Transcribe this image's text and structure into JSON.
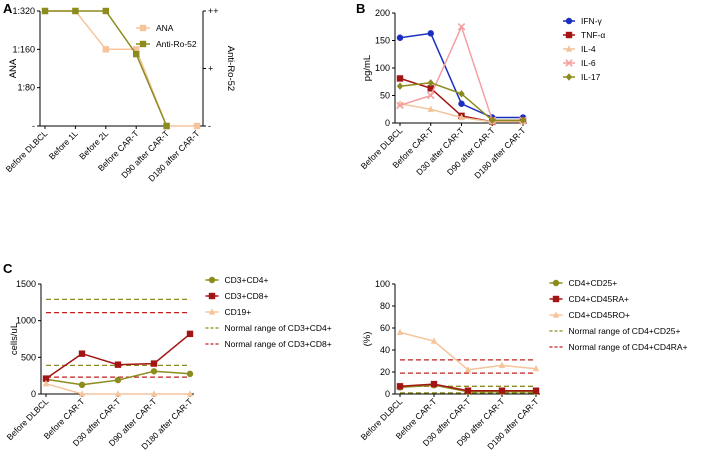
{
  "chart_data": [
    {
      "id": "A",
      "panel_label": "A",
      "type": "line",
      "categories": [
        "Before DLBCL",
        "Before 1L",
        "Before 2L",
        "Before CAR-T",
        "D90 after CAR-T",
        "D180 after CAR-T"
      ],
      "ylabel": "ANA",
      "y2label": "Anti-Ro-52",
      "yticks": [
        "-",
        "1:80",
        "1:160",
        "1:320"
      ],
      "y2ticks": [
        "-",
        "+",
        "++"
      ],
      "ylim": [
        0,
        3
      ],
      "y2lim": [
        0,
        2
      ],
      "legend_position": "top-right",
      "series": [
        {
          "name": "ANA",
          "axis": "left",
          "color": "#f5c49b",
          "marker": "square",
          "values": [
            3,
            3,
            2,
            2,
            0,
            0
          ]
        },
        {
          "name": "Anti-Ro-52",
          "axis": "right",
          "color": "#8c8c1e",
          "marker": "square",
          "values": [
            2,
            2,
            2,
            1.25,
            0,
            null
          ]
        }
      ]
    },
    {
      "id": "B",
      "panel_label": "B",
      "type": "line",
      "categories": [
        "Before DLBCL",
        "Before CAR-T",
        "D30 after CAR-T",
        "D90 after CAR-T",
        "D180 after CAR-T"
      ],
      "ylabel": "pg/mL",
      "ylim": [
        0,
        200
      ],
      "yticks": [
        0,
        50,
        100,
        150,
        200
      ],
      "legend_position": "right",
      "series": [
        {
          "name": "IFN-γ",
          "color": "#1a2fc2",
          "marker": "circle",
          "values": [
            155,
            163,
            35,
            10,
            10
          ]
        },
        {
          "name": "TNF-α",
          "color": "#a31515",
          "marker": "square",
          "values": [
            81,
            63,
            13,
            2,
            4
          ]
        },
        {
          "name": "IL-4",
          "color": "#f2c49a",
          "marker": "triangle",
          "values": [
            35,
            25,
            10,
            2,
            2
          ]
        },
        {
          "name": "IL-6",
          "color": "#f4a0a0",
          "marker": "x",
          "values": [
            32,
            50,
            175,
            5,
            5
          ]
        },
        {
          "name": "IL-17",
          "color": "#8c8c1e",
          "marker": "diamond",
          "values": [
            67,
            73,
            53,
            5,
            5
          ]
        }
      ]
    },
    {
      "id": "C1",
      "panel_label": "C",
      "type": "line",
      "categories": [
        "Before DLBCL",
        "Before CAR-T",
        "D30 after CAR-T",
        "D90 after CAR-T",
        "D180 after CAR-T"
      ],
      "ylabel": "cells/uL",
      "ylim": [
        0,
        1500
      ],
      "yticks": [
        0,
        500,
        1000,
        1500
      ],
      "legend_position": "right",
      "series": [
        {
          "name": "CD3+CD4+",
          "color": "#8c8c1e",
          "marker": "circle",
          "values": [
            200,
            125,
            190,
            310,
            275
          ]
        },
        {
          "name": "CD3+CD8+",
          "color": "#a31515",
          "marker": "square",
          "values": [
            210,
            550,
            400,
            415,
            820
          ]
        },
        {
          "name": "CD19+",
          "color": "#f5c49b",
          "marker": "triangle",
          "values": [
            140,
            0,
            0,
            0,
            0
          ]
        }
      ],
      "reference_lines": [
        {
          "name": "Normal range of CD3+CD4+",
          "color": "#8c8c1e",
          "values": [
            390,
            1290
          ]
        },
        {
          "name": "Normal range of CD3+CD8+",
          "color": "#c21f1f",
          "values": [
            230,
            1110
          ]
        }
      ]
    },
    {
      "id": "C2",
      "type": "line",
      "categories": [
        "Before DLBCL",
        "Before CAR-T",
        "D30 after CAR-T",
        "D90 after CAR-T",
        "D180 after CAR-T"
      ],
      "ylabel": "(%)",
      "ylim": [
        0,
        100
      ],
      "yticks": [
        0,
        20,
        40,
        60,
        80,
        100
      ],
      "legend_position": "right",
      "series": [
        {
          "name": "CD4+CD25+",
          "color": "#8c8c1e",
          "marker": "circle",
          "values": [
            6,
            8,
            2,
            2,
            2
          ]
        },
        {
          "name": "CD4+CD45RA+",
          "color": "#a31515",
          "marker": "square",
          "values": [
            7,
            9,
            3,
            3,
            3
          ]
        },
        {
          "name": "CD4+CD45RO+",
          "color": "#f5c49b",
          "marker": "triangle",
          "values": [
            56,
            48,
            22,
            26,
            23
          ]
        }
      ],
      "reference_lines": [
        {
          "name": "Normal range of CD4+CD25+",
          "color": "#8c8c1e",
          "values": [
            1,
            7
          ]
        },
        {
          "name": "Normal range of CD4+CD4RA+",
          "color": "#c21f1f",
          "values": [
            19,
            31
          ]
        }
      ]
    }
  ]
}
